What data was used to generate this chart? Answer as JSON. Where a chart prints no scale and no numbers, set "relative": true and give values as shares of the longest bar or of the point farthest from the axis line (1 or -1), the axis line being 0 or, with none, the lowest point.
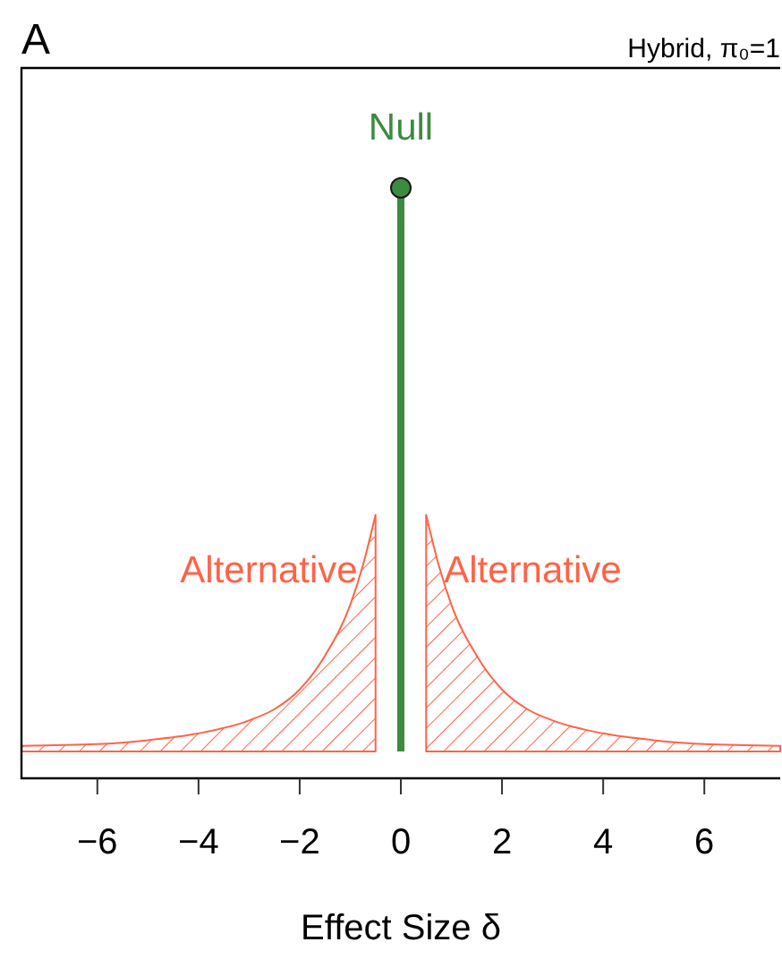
{
  "chart_data": {
    "type": "area",
    "title": "A",
    "subtitle": "Hybrid, π₀=1",
    "xlabel": "Effect Size δ",
    "relative": true,
    "grid": false,
    "xlim": [
      -7.5,
      7.5
    ],
    "xticks": [
      {
        "value": -6,
        "label": "−6"
      },
      {
        "value": -4,
        "label": "−4"
      },
      {
        "value": -2,
        "label": "−2"
      },
      0,
      2,
      4,
      6
    ],
    "series": [
      {
        "name": "Null",
        "type": "lollipop",
        "marker": "circle",
        "color": "#3d8b40",
        "x": [
          0
        ],
        "values": [
          1
        ]
      },
      {
        "name": "Alternative",
        "color": "#ff6347",
        "x": [
          -7.5,
          -6,
          -5,
          -4,
          -3,
          -2.5,
          -2,
          -1.5,
          -1,
          -0.75,
          -0.5
        ],
        "values": [
          0.01,
          0.013,
          0.02,
          0.032,
          0.055,
          0.075,
          0.11,
          0.17,
          0.26,
          0.33,
          0.42
        ]
      },
      {
        "name": "Alternative",
        "color": "#ff6347",
        "x": [
          0.5,
          0.75,
          1,
          1.5,
          2,
          2.5,
          3,
          4,
          5,
          6,
          7.5
        ],
        "values": [
          0.42,
          0.33,
          0.26,
          0.17,
          0.11,
          0.075,
          0.055,
          0.032,
          0.02,
          0.013,
          0.01
        ]
      }
    ]
  }
}
